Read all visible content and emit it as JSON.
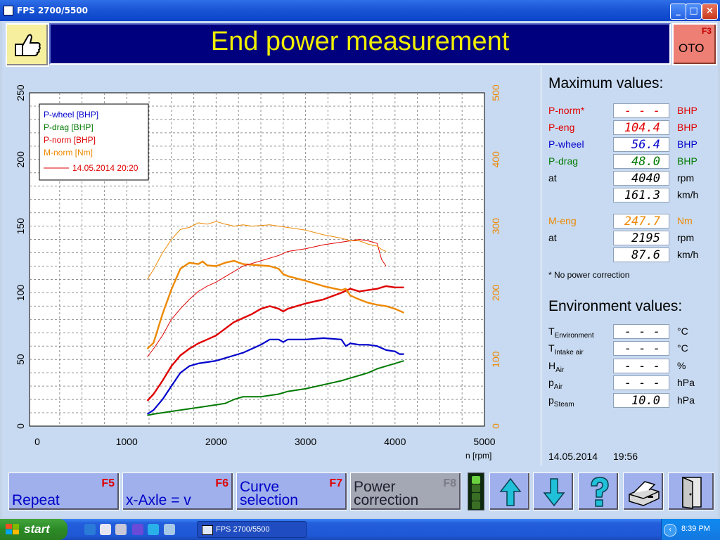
{
  "window": {
    "title": "FPS 2700/5500"
  },
  "header": {
    "title": "End power measurement",
    "f3_label": "F3",
    "f3_symbol": "OTO"
  },
  "colors": {
    "p_wheel": "#0000cc",
    "p_drag": "#007a00",
    "p_norm": "#e00000",
    "m_norm": "#ee8800",
    "banner_bg": "#00007e",
    "banner_text": "#f0ee00"
  },
  "legend": {
    "p_wheel": "P-wheel [BHP]",
    "p_drag": "P-drag [BHP]",
    "p_norm": "P-norm [BHP]",
    "m_norm": "M-norm [Nm]",
    "reference": "14.05.2014 20:20"
  },
  "chart_data": {
    "type": "line",
    "xlabel": "n [rpm]",
    "xlim": [
      0,
      5000
    ],
    "x_ticks": [
      0,
      1000,
      2000,
      3000,
      4000,
      5000
    ],
    "ylim_left": [
      0,
      250
    ],
    "y_ticks_left": [
      0,
      50,
      100,
      150,
      200,
      250
    ],
    "ylim_right": [
      0,
      500
    ],
    "y_ticks_right": [
      0,
      100,
      200,
      300,
      400,
      500
    ],
    "grid": true,
    "legend_position": "top-left",
    "series": [
      {
        "name": "P-wheel [BHP]",
        "axis": "left",
        "x": [
          1230,
          1300,
          1400,
          1500,
          1600,
          1700,
          1800,
          1900,
          2000,
          2100,
          2200,
          2300,
          2400,
          2500,
          2600,
          2700,
          2750,
          2800,
          3000,
          3200,
          3400,
          3450,
          3500,
          3600,
          3700,
          3800,
          3900,
          4000,
          4050,
          4100
        ],
        "y": [
          9,
          12,
          20,
          30,
          40,
          45,
          47,
          48,
          49,
          51,
          53,
          55,
          58,
          61,
          65,
          65,
          63,
          65,
          65,
          66,
          65,
          60,
          62,
          61,
          61,
          60,
          57,
          56,
          54,
          54
        ]
      },
      {
        "name": "P-drag [BHP]",
        "axis": "left",
        "x": [
          1230,
          1300,
          1400,
          1500,
          1600,
          1700,
          1800,
          1900,
          2000,
          2100,
          2200,
          2300,
          2400,
          2500,
          2600,
          2700,
          2800,
          3000,
          3200,
          3400,
          3500,
          3600,
          3700,
          3800,
          3900,
          4000,
          4100
        ],
        "y": [
          8,
          9,
          10,
          11,
          12,
          13,
          14,
          15,
          16,
          17,
          20,
          22,
          22,
          22,
          23,
          24,
          26,
          28,
          31,
          34,
          36,
          38,
          40,
          43,
          45,
          47,
          49
        ]
      },
      {
        "name": "P-norm [BHP]",
        "axis": "left",
        "x": [
          1230,
          1300,
          1400,
          1500,
          1600,
          1700,
          1800,
          1900,
          2000,
          2100,
          2200,
          2300,
          2400,
          2500,
          2600,
          2700,
          2750,
          2800,
          3000,
          3200,
          3400,
          3500,
          3600,
          3700,
          3800,
          3900,
          4000,
          4100
        ],
        "y": [
          19,
          24,
          34,
          45,
          53,
          58,
          62,
          65,
          68,
          73,
          78,
          81,
          84,
          88,
          90,
          88,
          86,
          88,
          92,
          95,
          100,
          103,
          101,
          102,
          103,
          105,
          104,
          104
        ]
      },
      {
        "name": "M-norm [Nm]",
        "axis": "right",
        "x": [
          1230,
          1300,
          1400,
          1500,
          1600,
          1700,
          1800,
          1850,
          1900,
          2000,
          2100,
          2200,
          2300,
          2400,
          2500,
          2600,
          2700,
          2750,
          2800,
          3000,
          3200,
          3400,
          3450,
          3500,
          3600,
          3700,
          3800,
          3900,
          4000,
          4100
        ],
        "y": [
          116,
          125,
          168,
          205,
          236,
          245,
          243,
          247,
          241,
          240,
          245,
          248,
          243,
          242,
          241,
          240,
          236,
          228,
          225,
          218,
          210,
          204,
          206,
          196,
          190,
          185,
          182,
          180,
          176,
          170
        ]
      },
      {
        "name": "14.05.2014 20:20",
        "axis": "left",
        "x": [
          1230,
          1300,
          1400,
          1500,
          1600,
          1700,
          1800,
          1900,
          2000,
          2100,
          2200,
          2300,
          2400,
          2500,
          2600,
          2700,
          2800,
          3000,
          3200,
          3400,
          3600,
          3700,
          3750,
          3800,
          3850,
          3900
        ],
        "y": [
          52,
          58,
          68,
          80,
          88,
          95,
          101,
          105,
          108,
          112,
          116,
          120,
          122,
          124,
          126,
          128,
          131,
          133,
          136,
          138,
          140,
          139,
          138,
          137,
          125,
          120
        ]
      },
      {
        "name": "14.05.2014 20:20",
        "axis": "right",
        "x": [
          1230,
          1300,
          1400,
          1500,
          1600,
          1700,
          1800,
          1900,
          2000,
          2100,
          2200,
          2300,
          2400,
          2500,
          2600,
          2700,
          2800,
          3000,
          3200,
          3400,
          3500,
          3600,
          3700,
          3800,
          3850,
          3900
        ],
        "y": [
          220,
          235,
          260,
          280,
          295,
          298,
          305,
          303,
          307,
          303,
          300,
          302,
          300,
          301,
          302,
          300,
          298,
          294,
          287,
          282,
          278,
          278,
          273,
          270,
          265,
          262
        ]
      }
    ]
  },
  "max_values": {
    "title": "Maximum values:",
    "rows": [
      {
        "label": "P-norm*",
        "value": "- - - - .-",
        "unit": "BHP",
        "color": "#e00000"
      },
      {
        "label": "P-eng",
        "value": "104.4",
        "unit": "BHP",
        "color": "#e00000"
      },
      {
        "label": "P-wheel",
        "value": "56.4",
        "unit": "BHP",
        "color": "#0000cc"
      },
      {
        "label": "P-drag",
        "value": "48.0",
        "unit": "BHP",
        "color": "#007a00"
      },
      {
        "label": "at",
        "value": "4040",
        "unit": "rpm",
        "color": "#000000"
      },
      {
        "label": "",
        "value": "161.3",
        "unit": "km/h",
        "color": "#000000"
      },
      {
        "label": "M-eng",
        "value": "247.7",
        "unit": "Nm",
        "color": "#ee8800"
      },
      {
        "label": "at",
        "value": "2195",
        "unit": "rpm",
        "color": "#000000"
      },
      {
        "label": "",
        "value": "87.6",
        "unit": "km/h",
        "color": "#000000"
      }
    ],
    "note": "* No power correction"
  },
  "environment": {
    "title": "Environment values:",
    "rows": [
      {
        "label": "T",
        "sub": "Environment",
        "value": "- - - -.-",
        "unit": "°C"
      },
      {
        "label": "T",
        "sub": "Intake air",
        "value": "- - - -.-",
        "unit": "°C"
      },
      {
        "label": "H",
        "sub": "Air",
        "value": "- - - -.-",
        "unit": "%"
      },
      {
        "label": "p",
        "sub": "Air",
        "value": "- - - -.-",
        "unit": "hPa"
      },
      {
        "label": "p",
        "sub": "Steam",
        "value": "10.0",
        "unit": "hPa"
      }
    ]
  },
  "timestamp": {
    "date": "14.05.2014",
    "time": "19:56"
  },
  "fkeys": [
    {
      "key": "F5",
      "text1": "",
      "text2": "Repeat"
    },
    {
      "key": "F6",
      "text1": "",
      "text2": "x-Axle = v"
    },
    {
      "key": "F7",
      "text1": "Curve",
      "text2": "selection"
    },
    {
      "key": "F8",
      "text1": "Power",
      "text2": "correction"
    }
  ],
  "taskbar": {
    "start": "start",
    "task": "FPS 2700/5500",
    "clock": "8:39 PM"
  }
}
